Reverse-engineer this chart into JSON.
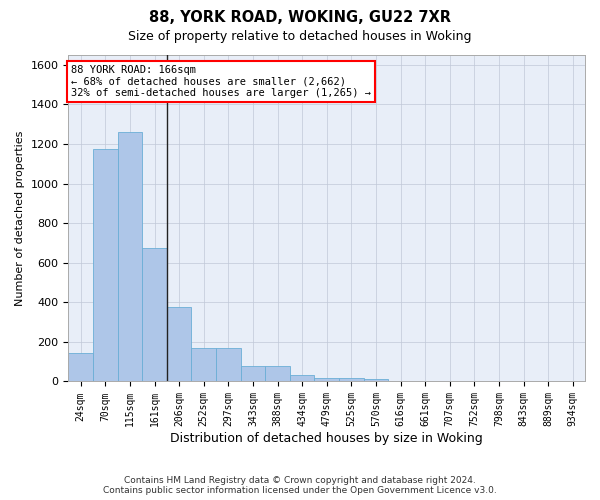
{
  "title1": "88, YORK ROAD, WOKING, GU22 7XR",
  "title2": "Size of property relative to detached houses in Woking",
  "xlabel": "Distribution of detached houses by size in Woking",
  "ylabel": "Number of detached properties",
  "categories": [
    "24sqm",
    "70sqm",
    "115sqm",
    "161sqm",
    "206sqm",
    "252sqm",
    "297sqm",
    "343sqm",
    "388sqm",
    "434sqm",
    "479sqm",
    "525sqm",
    "570sqm",
    "616sqm",
    "661sqm",
    "707sqm",
    "752sqm",
    "798sqm",
    "843sqm",
    "889sqm",
    "934sqm"
  ],
  "values": [
    145,
    1175,
    1260,
    675,
    375,
    170,
    170,
    80,
    80,
    35,
    20,
    20,
    10,
    0,
    0,
    0,
    0,
    0,
    0,
    0,
    0
  ],
  "bar_color": "#aec6e8",
  "bar_edge_color": "#6baed6",
  "property_sqm_bin_index": 3,
  "annotation_text_line1": "88 YORK ROAD: 166sqm",
  "annotation_text_line2": "← 68% of detached houses are smaller (2,662)",
  "annotation_text_line3": "32% of semi-detached houses are larger (1,265) →",
  "annotation_box_color": "white",
  "annotation_box_edge_color": "red",
  "ylim": [
    0,
    1650
  ],
  "yticks": [
    0,
    200,
    400,
    600,
    800,
    1000,
    1200,
    1400,
    1600
  ],
  "grid_color": "#c0c8d8",
  "bg_color": "#e8eef8",
  "footer1": "Contains HM Land Registry data © Crown copyright and database right 2024.",
  "footer2": "Contains public sector information licensed under the Open Government Licence v3.0."
}
